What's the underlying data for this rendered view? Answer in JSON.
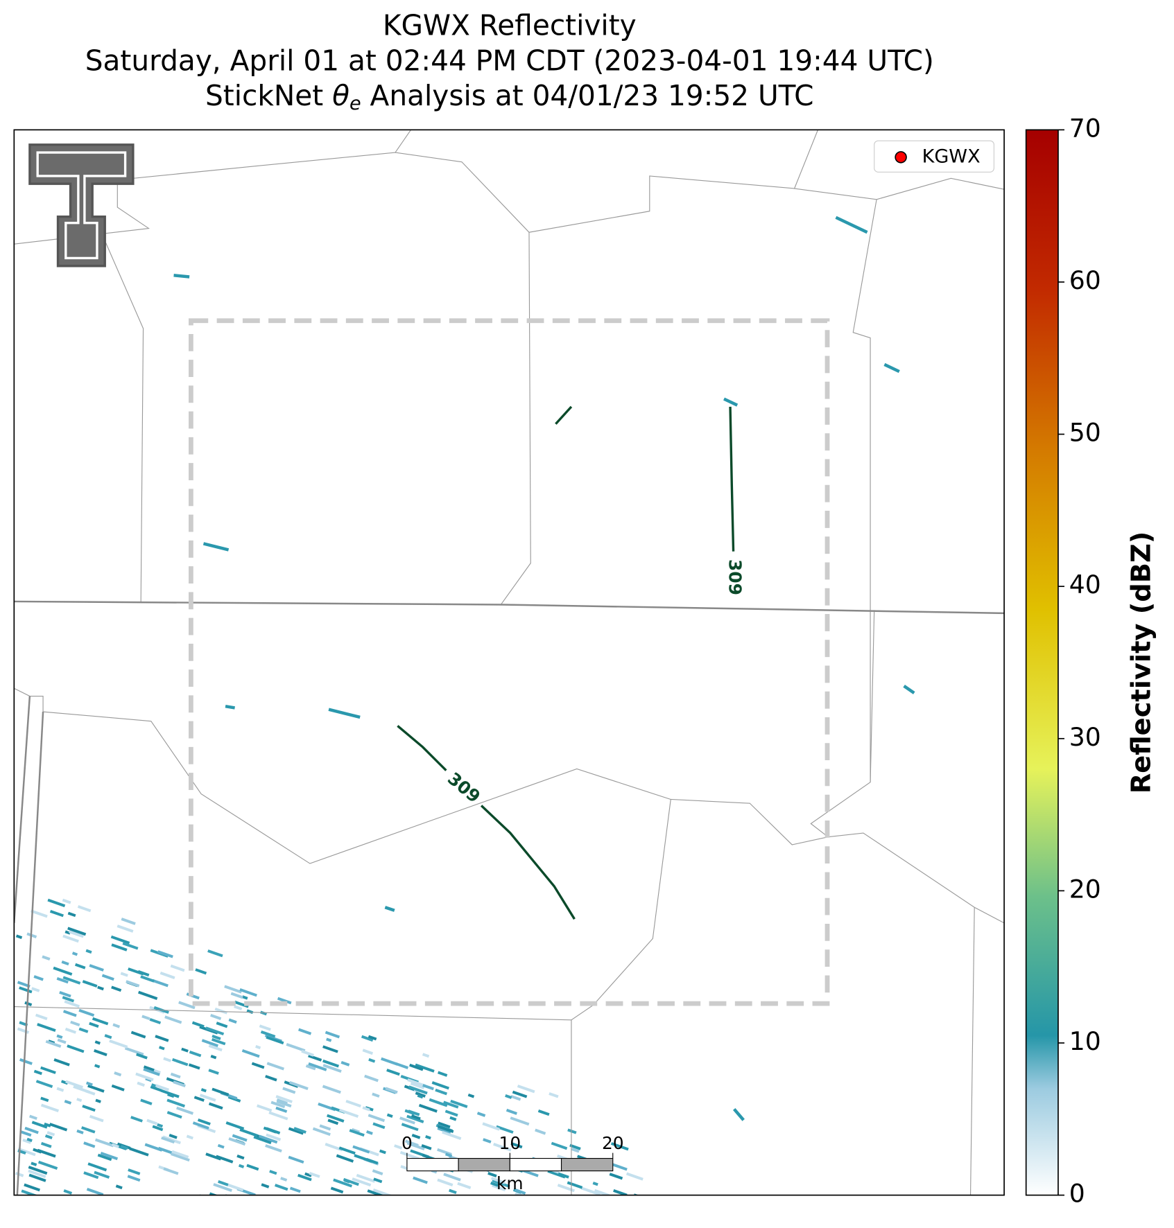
{
  "chart_data": {
    "type": "radar-map",
    "title_lines": [
      "KGWX Reflectivity",
      "Saturday, April 01 at 02:44 PM CDT (2023-04-01 19:44 UTC)"
    ],
    "title_line3": {
      "before": "StickNet ",
      "symbol": "θ",
      "subscript": "e",
      "after": " Analysis at 04/01/23 19:52 UTC"
    },
    "legend_label": "KGWX",
    "colorbar_label": "Reflectivity (dBZ)",
    "ylim": [
      0,
      70
    ],
    "yticks": [
      0,
      10,
      20,
      30,
      40,
      50,
      60,
      70
    ],
    "contours": [
      {
        "level": 309
      },
      {
        "level": 309
      }
    ],
    "scale_bar": {
      "xlim": [
        0,
        20
      ],
      "xticks": [
        0,
        10,
        20
      ],
      "unit": "km"
    }
  }
}
